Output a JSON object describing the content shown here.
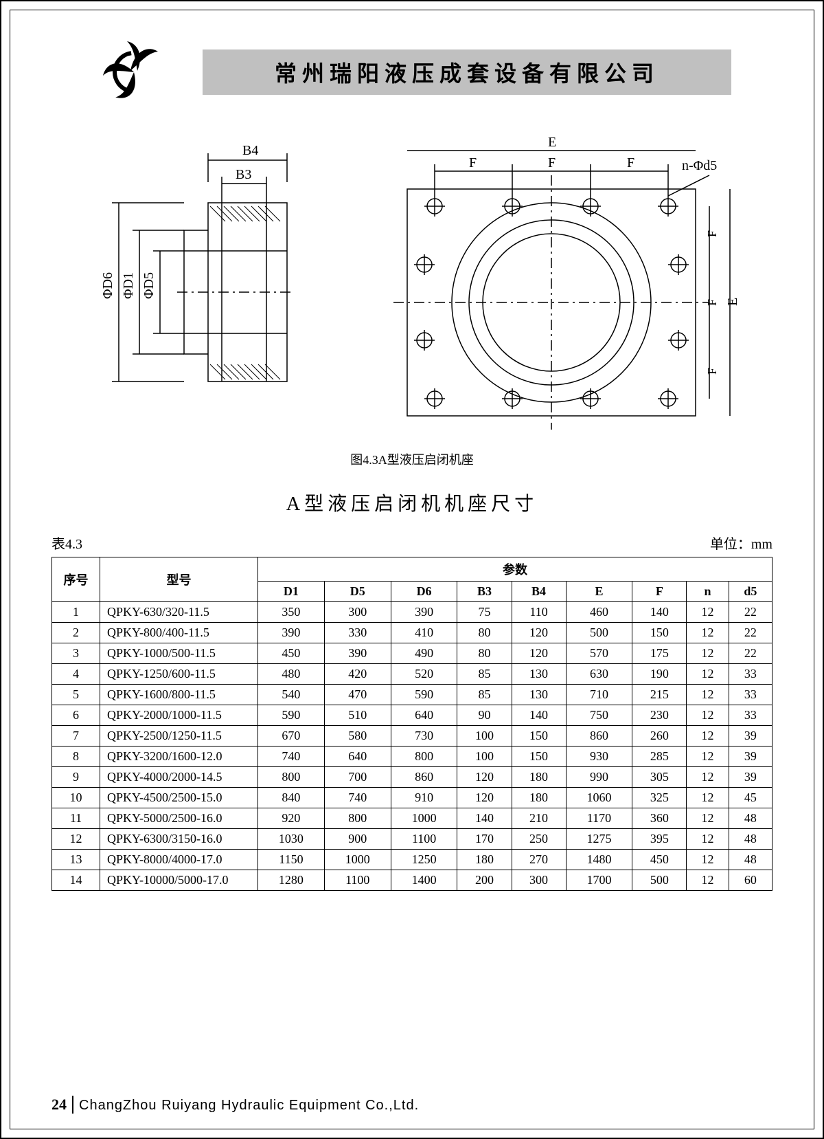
{
  "header": {
    "company_cn": "常州瑞阳液压成套设备有限公司"
  },
  "figure": {
    "caption": "图4.3A型液压启闭机座",
    "left_labels": {
      "top1": "B4",
      "top2": "B3",
      "d6": "ΦD6",
      "d1": "ΦD1",
      "d5": "ΦD5"
    },
    "right_labels": {
      "E": "E",
      "F": "F",
      "n_d5": "n-Φd5"
    }
  },
  "table": {
    "title": "A型液压启闭机机座尺寸",
    "label": "表4.3",
    "unit": "单位：mm",
    "head": {
      "seq": "序号",
      "model": "型号",
      "params": "参数"
    },
    "columns": [
      "D1",
      "D5",
      "D6",
      "B3",
      "B4",
      "E",
      "F",
      "n",
      "d5"
    ],
    "rows": [
      {
        "seq": "1",
        "model": "QPKY-630/320-11.5",
        "vals": [
          "350",
          "300",
          "390",
          "75",
          "110",
          "460",
          "140",
          "12",
          "22"
        ]
      },
      {
        "seq": "2",
        "model": "QPKY-800/400-11.5",
        "vals": [
          "390",
          "330",
          "410",
          "80",
          "120",
          "500",
          "150",
          "12",
          "22"
        ]
      },
      {
        "seq": "3",
        "model": "QPKY-1000/500-11.5",
        "vals": [
          "450",
          "390",
          "490",
          "80",
          "120",
          "570",
          "175",
          "12",
          "22"
        ]
      },
      {
        "seq": "4",
        "model": "QPKY-1250/600-11.5",
        "vals": [
          "480",
          "420",
          "520",
          "85",
          "130",
          "630",
          "190",
          "12",
          "33"
        ]
      },
      {
        "seq": "5",
        "model": "QPKY-1600/800-11.5",
        "vals": [
          "540",
          "470",
          "590",
          "85",
          "130",
          "710",
          "215",
          "12",
          "33"
        ]
      },
      {
        "seq": "6",
        "model": "QPKY-2000/1000-11.5",
        "vals": [
          "590",
          "510",
          "640",
          "90",
          "140",
          "750",
          "230",
          "12",
          "33"
        ]
      },
      {
        "seq": "7",
        "model": "QPKY-2500/1250-11.5",
        "vals": [
          "670",
          "580",
          "730",
          "100",
          "150",
          "860",
          "260",
          "12",
          "39"
        ]
      },
      {
        "seq": "8",
        "model": "QPKY-3200/1600-12.0",
        "vals": [
          "740",
          "640",
          "800",
          "100",
          "150",
          "930",
          "285",
          "12",
          "39"
        ]
      },
      {
        "seq": "9",
        "model": "QPKY-4000/2000-14.5",
        "vals": [
          "800",
          "700",
          "860",
          "120",
          "180",
          "990",
          "305",
          "12",
          "39"
        ]
      },
      {
        "seq": "10",
        "model": "QPKY-4500/2500-15.0",
        "vals": [
          "840",
          "740",
          "910",
          "120",
          "180",
          "1060",
          "325",
          "12",
          "45"
        ]
      },
      {
        "seq": "11",
        "model": "QPKY-5000/2500-16.0",
        "vals": [
          "920",
          "800",
          "1000",
          "140",
          "210",
          "1170",
          "360",
          "12",
          "48"
        ]
      },
      {
        "seq": "12",
        "model": "QPKY-6300/3150-16.0",
        "vals": [
          "1030",
          "900",
          "1100",
          "170",
          "250",
          "1275",
          "395",
          "12",
          "48"
        ]
      },
      {
        "seq": "13",
        "model": "QPKY-8000/4000-17.0",
        "vals": [
          "1150",
          "1000",
          "1250",
          "180",
          "270",
          "1480",
          "450",
          "12",
          "48"
        ]
      },
      {
        "seq": "14",
        "model": "QPKY-10000/5000-17.0",
        "vals": [
          "1280",
          "1100",
          "1400",
          "200",
          "300",
          "1700",
          "500",
          "12",
          "60"
        ]
      }
    ]
  },
  "footer": {
    "page": "24",
    "company_en": "ChangZhou Ruiyang Hydraulic Equipment Co.,Ltd."
  },
  "colors": {
    "bg": "#ffffff",
    "text": "#000000",
    "bar": "#c0c0c0",
    "border": "#000000"
  }
}
